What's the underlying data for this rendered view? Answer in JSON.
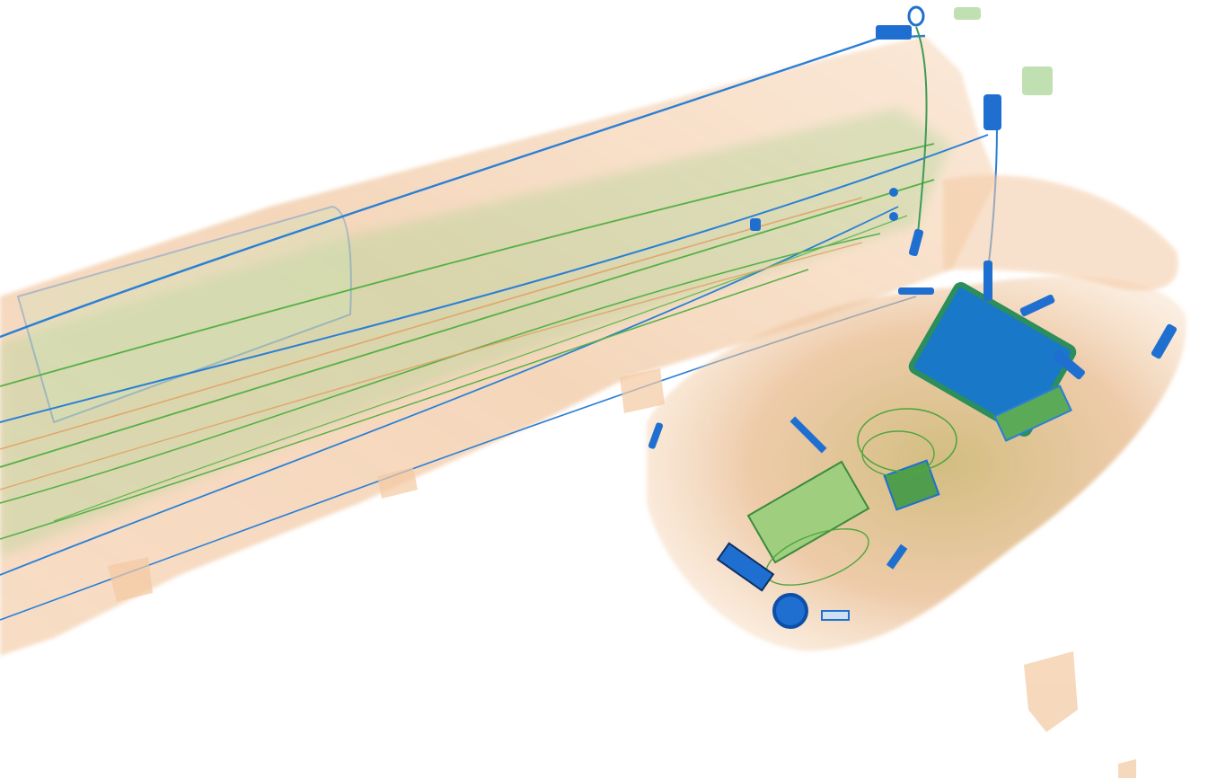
{
  "image": {
    "kind": "x-ray baggage scan",
    "palette": {
      "background": "#ffffff",
      "organic": "#f0b27a",
      "organic_dark": "#e08c4a",
      "mixed": "#7fc46a",
      "mixed_dark": "#4ea63e",
      "metal": "#1f6fd1",
      "metal_dark": "#0d4fa8",
      "dense": "#136f8a"
    }
  }
}
